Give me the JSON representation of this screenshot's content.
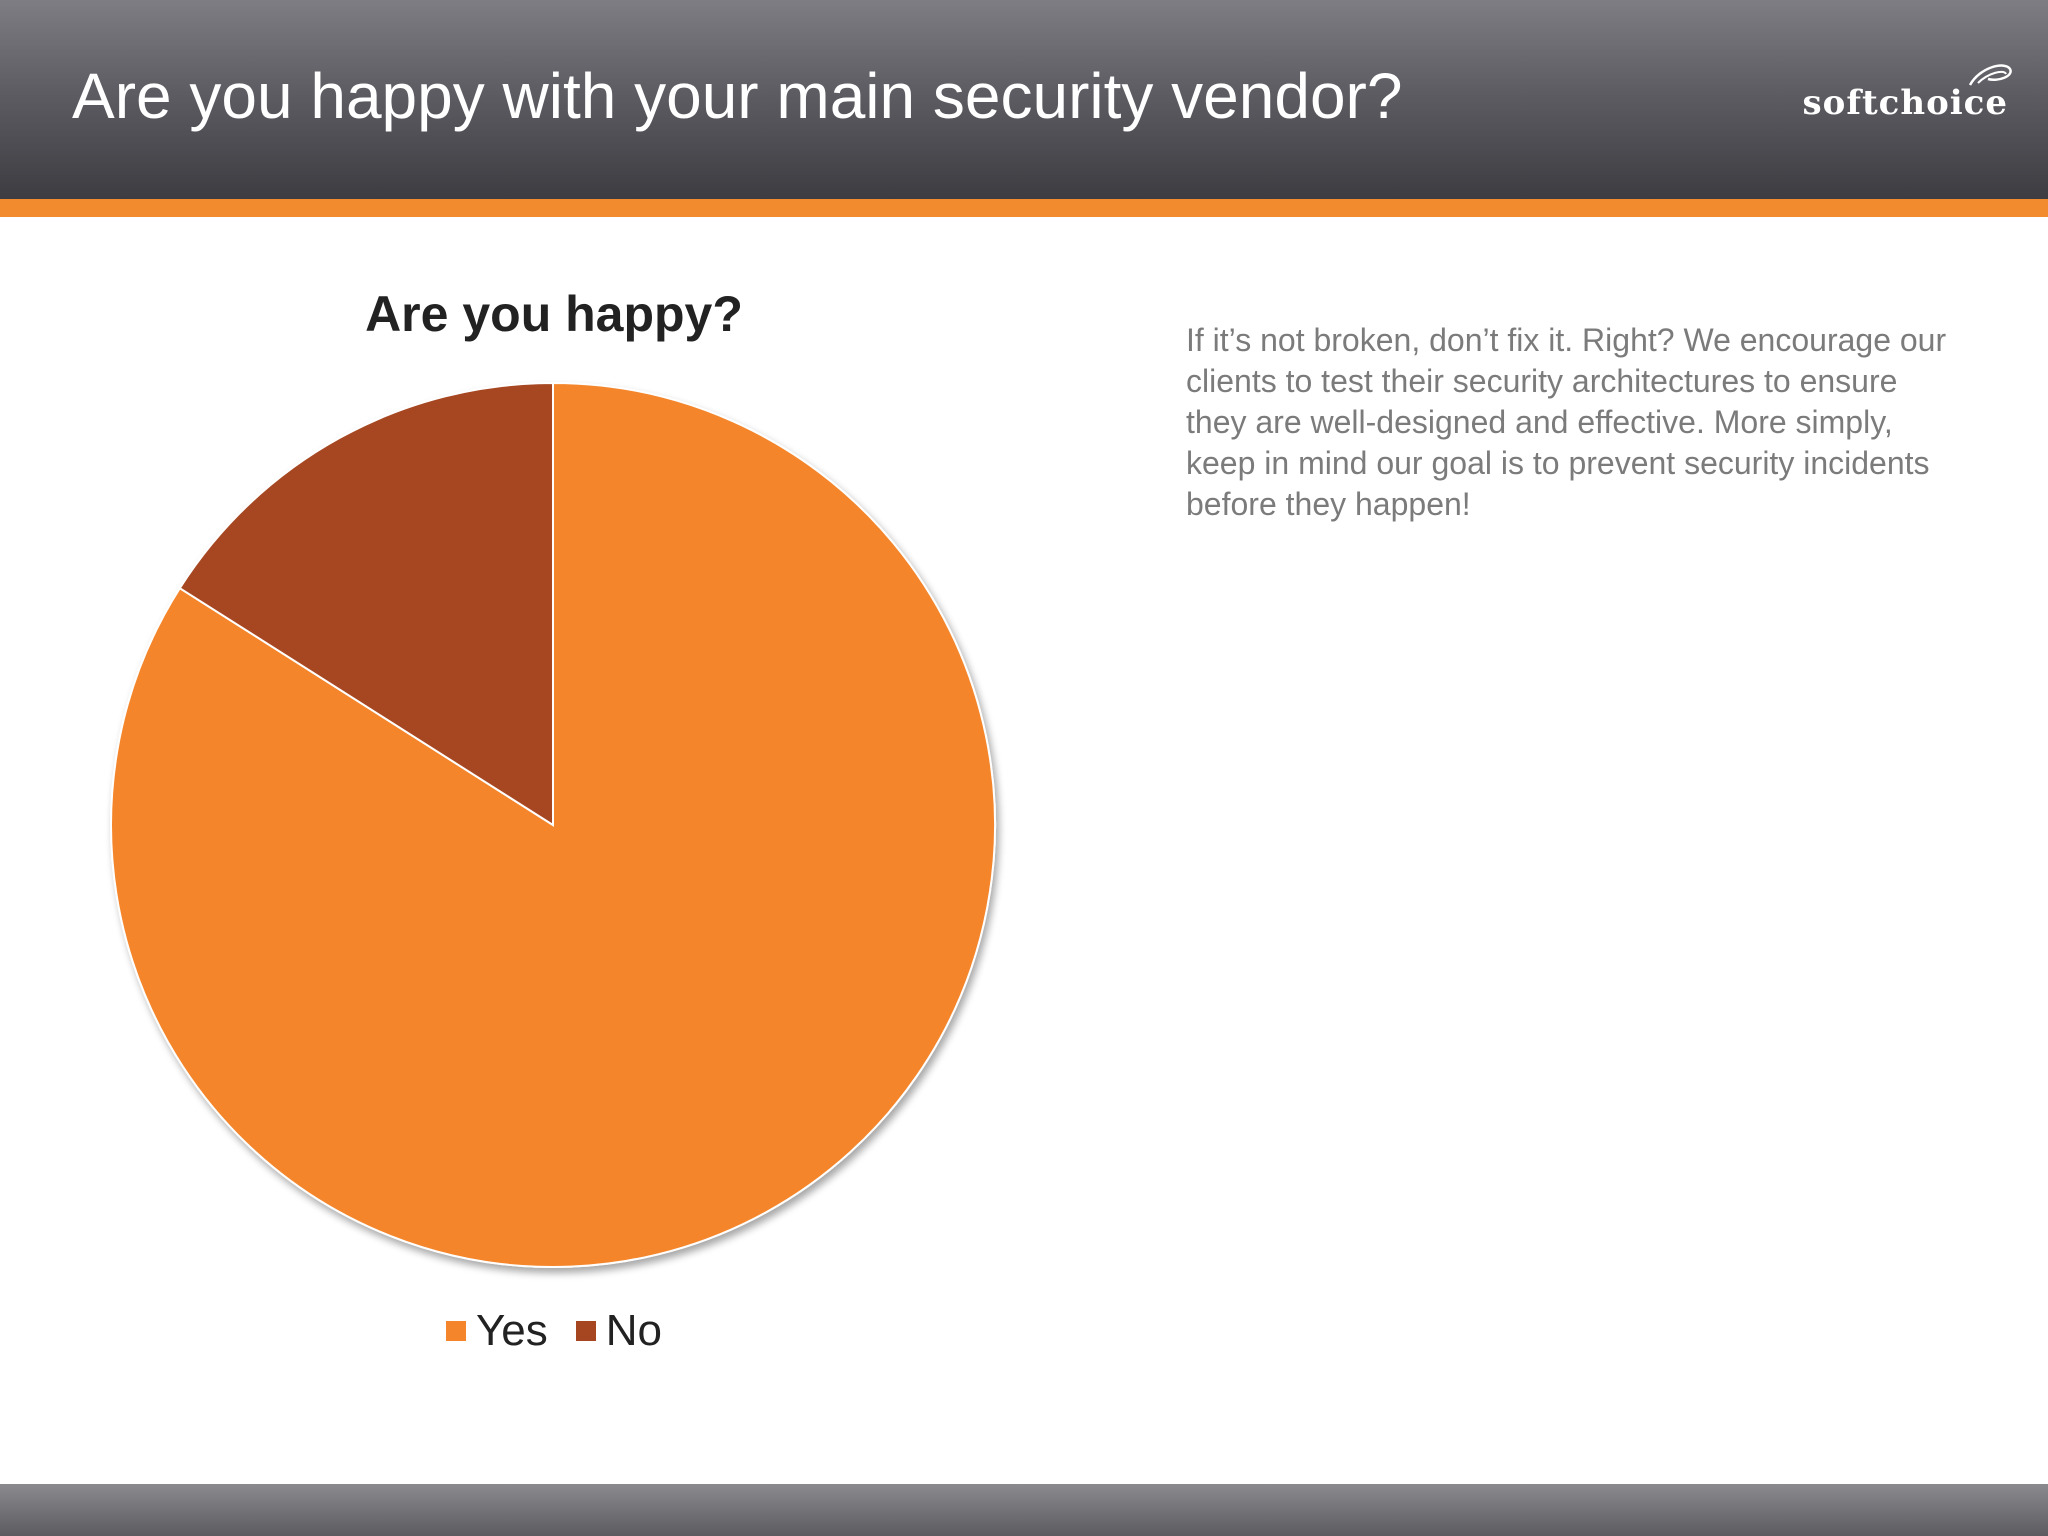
{
  "slide": {
    "title": "Are you happy with your main security vendor?",
    "logo_text": "softchoice",
    "body_text": "If it’s not broken, don’t fix it. Right? We encourage our clients to test their security architectures to ensure they are well-designed and effective. More simply, keep in mind our goal is to prevent security incidents before they happen!"
  },
  "colors": {
    "header_dark": "#4a4a50",
    "accent_orange": "#f28a2e",
    "yes": "#f5852a",
    "no": "#a64621",
    "body_text": "#7b7b7b"
  },
  "chart_data": {
    "type": "pie",
    "title": "Are you happy?",
    "categories": [
      "Yes",
      "No"
    ],
    "values": [
      84,
      16
    ],
    "colors": [
      "#f5852a",
      "#a64621"
    ],
    "legend_position": "bottom",
    "legend": [
      {
        "label": "Yes",
        "color": "#f5852a"
      },
      {
        "label": "No",
        "color": "#a64621"
      }
    ]
  }
}
